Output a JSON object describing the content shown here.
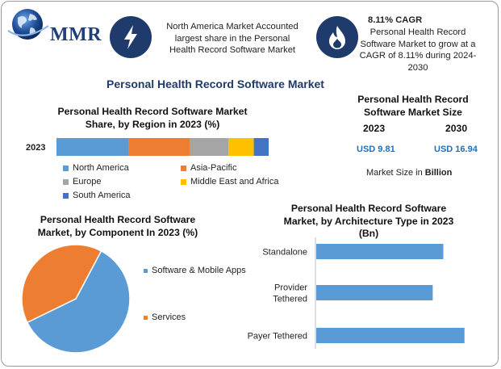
{
  "brand": {
    "name": "MMR"
  },
  "highlights": [
    {
      "icon": "lightning-icon",
      "lines": [
        "North America Market Accounted",
        "largest share in the Personal",
        "Health Record Software Market"
      ]
    },
    {
      "icon": "flame-icon",
      "heading": "8.11% CAGR",
      "lines": [
        "Personal Health Record",
        "Software Market to grow at a",
        "CAGR of 8.11% during 2024-",
        "2030"
      ]
    }
  ],
  "main_title": "Personal Health Record Software Market",
  "colors": {
    "blue": "#5b9bd5",
    "orange": "#ed7d31",
    "gray": "#a5a5a5",
    "yellow": "#ffc000",
    "darkblue": "#4472c4",
    "navy": "#1f3b6b",
    "accent_text": "#1f6fbf"
  },
  "market_size": {
    "title_lines": [
      "Personal Health Record",
      "Software Market Size"
    ],
    "year_2023": "2023",
    "year_2030": "2030",
    "value_2023": "USD 9.81",
    "value_2030": "USD 16.94",
    "note_prefix": "Market Size in ",
    "note_bold": "Billion"
  },
  "chart_data": [
    {
      "type": "bar",
      "orientation": "horizontal-stacked",
      "title": "Personal Health Record Software Market Share, by Region in 2023 (%)",
      "title_lines": [
        "Personal Health Record Software Market",
        "Share, by Region in 2023 (%)"
      ],
      "categories": [
        "2023"
      ],
      "series": [
        {
          "name": "North America",
          "values": [
            34
          ]
        },
        {
          "name": "Asia-Pacific",
          "values": [
            29
          ]
        },
        {
          "name": "Europe",
          "values": [
            18
          ]
        },
        {
          "name": "Middle East and Africa",
          "values": [
            12
          ]
        },
        {
          "name": "South America",
          "values": [
            7
          ]
        }
      ],
      "xlim": [
        0,
        100
      ],
      "legend": "bottom",
      "grid": false
    },
    {
      "type": "pie",
      "title": "Personal Health Record Software Market, by Component In 2023 (%)",
      "title_lines": [
        "Personal Health Record Software",
        "Market, by Component In 2023 (%)"
      ],
      "labels": [
        "Software & Mobile Apps",
        "Services"
      ],
      "values": [
        60,
        40
      ],
      "legend": "right"
    },
    {
      "type": "bar",
      "orientation": "horizontal",
      "title": "Personal Health Record Software Market, by Architecture Type in 2023 (Bn)",
      "title_lines": [
        "Personal Health Record Software",
        "Market, by Architecture Type in 2023",
        "(Bn)"
      ],
      "categories": [
        "Standalone",
        "Provider Tethered",
        "Payer Tethered"
      ],
      "category_lines": [
        [
          "Standalone"
        ],
        [
          "Provider",
          "Tethered"
        ],
        [
          "Payer Tethered"
        ]
      ],
      "values": [
        3.0,
        2.75,
        3.5
      ],
      "xlim": [
        0,
        4
      ],
      "grid": false
    }
  ]
}
